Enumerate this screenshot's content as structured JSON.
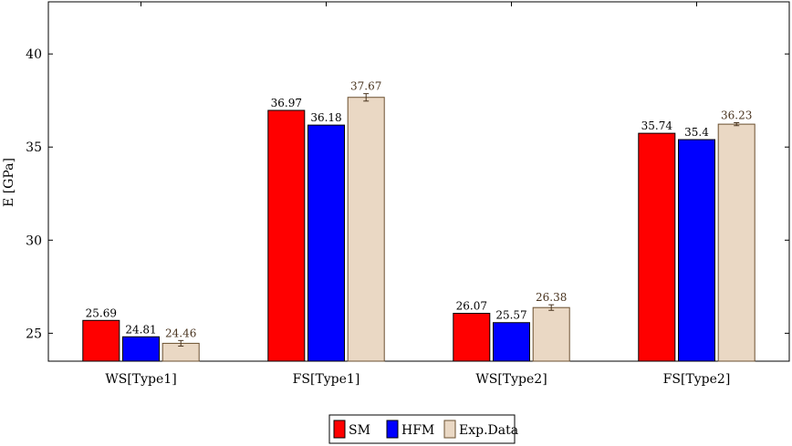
{
  "chart_data": {
    "type": "bar",
    "categories": [
      "WS[Type1]",
      "FS[Type1]",
      "WS[Type2]",
      "FS[Type2]"
    ],
    "series": [
      {
        "name": "SM",
        "color": "#ff0000",
        "values": [
          25.69,
          36.97,
          26.07,
          35.74
        ],
        "labels": [
          "25.69",
          "36.97",
          "26.07",
          "35.74"
        ]
      },
      {
        "name": "HFM",
        "color": "#0000ff",
        "values": [
          24.81,
          36.18,
          25.57,
          35.4
        ],
        "labels": [
          "24.81",
          "36.18",
          "25.57",
          "35.4"
        ]
      },
      {
        "name": "Exp.Data",
        "color": "#ead8c4",
        "stroke": "#6b5030",
        "values": [
          24.46,
          37.67,
          26.38,
          36.23
        ],
        "labels": [
          "24.46",
          "37.67",
          "26.38",
          "36.23"
        ],
        "errors": [
          0.15,
          0.2,
          0.15,
          0.08
        ]
      }
    ],
    "ylabel": "E [GPa]",
    "xlabel": "",
    "ylim": [
      23.5,
      42.8
    ],
    "yticks": [
      25,
      30,
      35,
      40
    ],
    "legend_position": "bottom-center",
    "grid": false
  }
}
